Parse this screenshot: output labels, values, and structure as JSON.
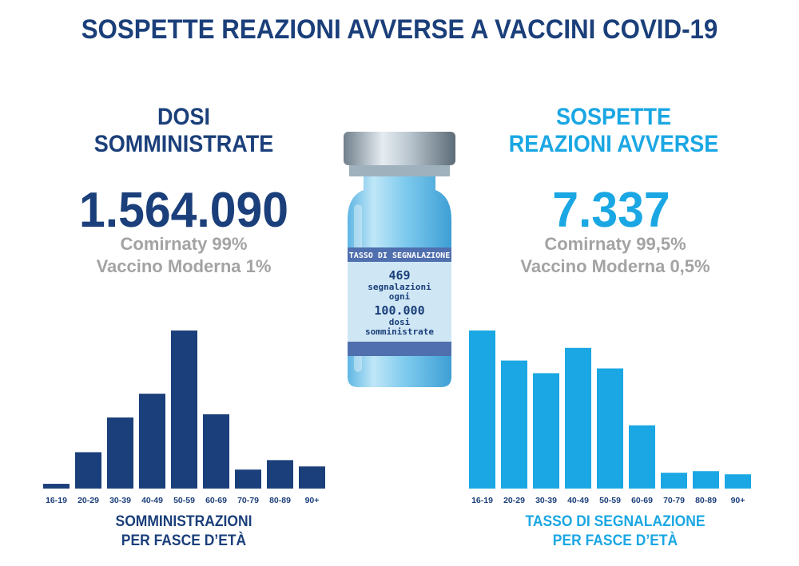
{
  "title": "SOSPETTE REAZIONI AVVERSE A VACCINI COVID-19",
  "left": {
    "heading_line1": "DOSI",
    "heading_line2": "SOMMINISTRATE",
    "total": "1.564.090",
    "sub1": "Comirnaty 99%",
    "sub2": "Vaccino Moderna 1%",
    "caption_line1": "SOMMINISTRAZIONI",
    "caption_line2": "PER FASCE D’ETÀ"
  },
  "right": {
    "heading_line1": "SOSPETTE",
    "heading_line2": "REAZIONI AVVERSE",
    "total": "7.337",
    "sub1": "Comirnaty 99,5%",
    "sub2": "Vaccino Moderna 0,5%",
    "caption_line1": "TASSO DI SEGNALAZIONE",
    "caption_line2": "PER FASCE D’ETÀ"
  },
  "vial": {
    "label_header": "TASSO DI SEGNALAZIONE",
    "rate": "469",
    "line2": "segnalazioni",
    "line3": "ogni",
    "doses": "100.000",
    "line5": "dosi",
    "line6": "somministrate"
  },
  "colors": {
    "dark_blue": "#1b3f7a",
    "light_blue": "#1aa7e3",
    "gray": "#a3a3a3"
  },
  "chart_data": [
    {
      "type": "bar",
      "categories": [
        "16-19",
        "20-29",
        "30-39",
        "40-49",
        "50-59",
        "60-69",
        "70-79",
        "80-89",
        "90+"
      ],
      "values": [
        3,
        23,
        45,
        60,
        100,
        47,
        12,
        18,
        14
      ],
      "ylim": [
        0,
        100
      ],
      "color": "#1b3f7a"
    },
    {
      "type": "bar",
      "categories": [
        "16-19",
        "20-29",
        "30-39",
        "40-49",
        "50-59",
        "60-69",
        "70-79",
        "80-89",
        "90+"
      ],
      "values": [
        100,
        81,
        73,
        89,
        76,
        40,
        10,
        11,
        9
      ],
      "ylim": [
        0,
        100
      ],
      "color": "#1aa7e3"
    }
  ]
}
